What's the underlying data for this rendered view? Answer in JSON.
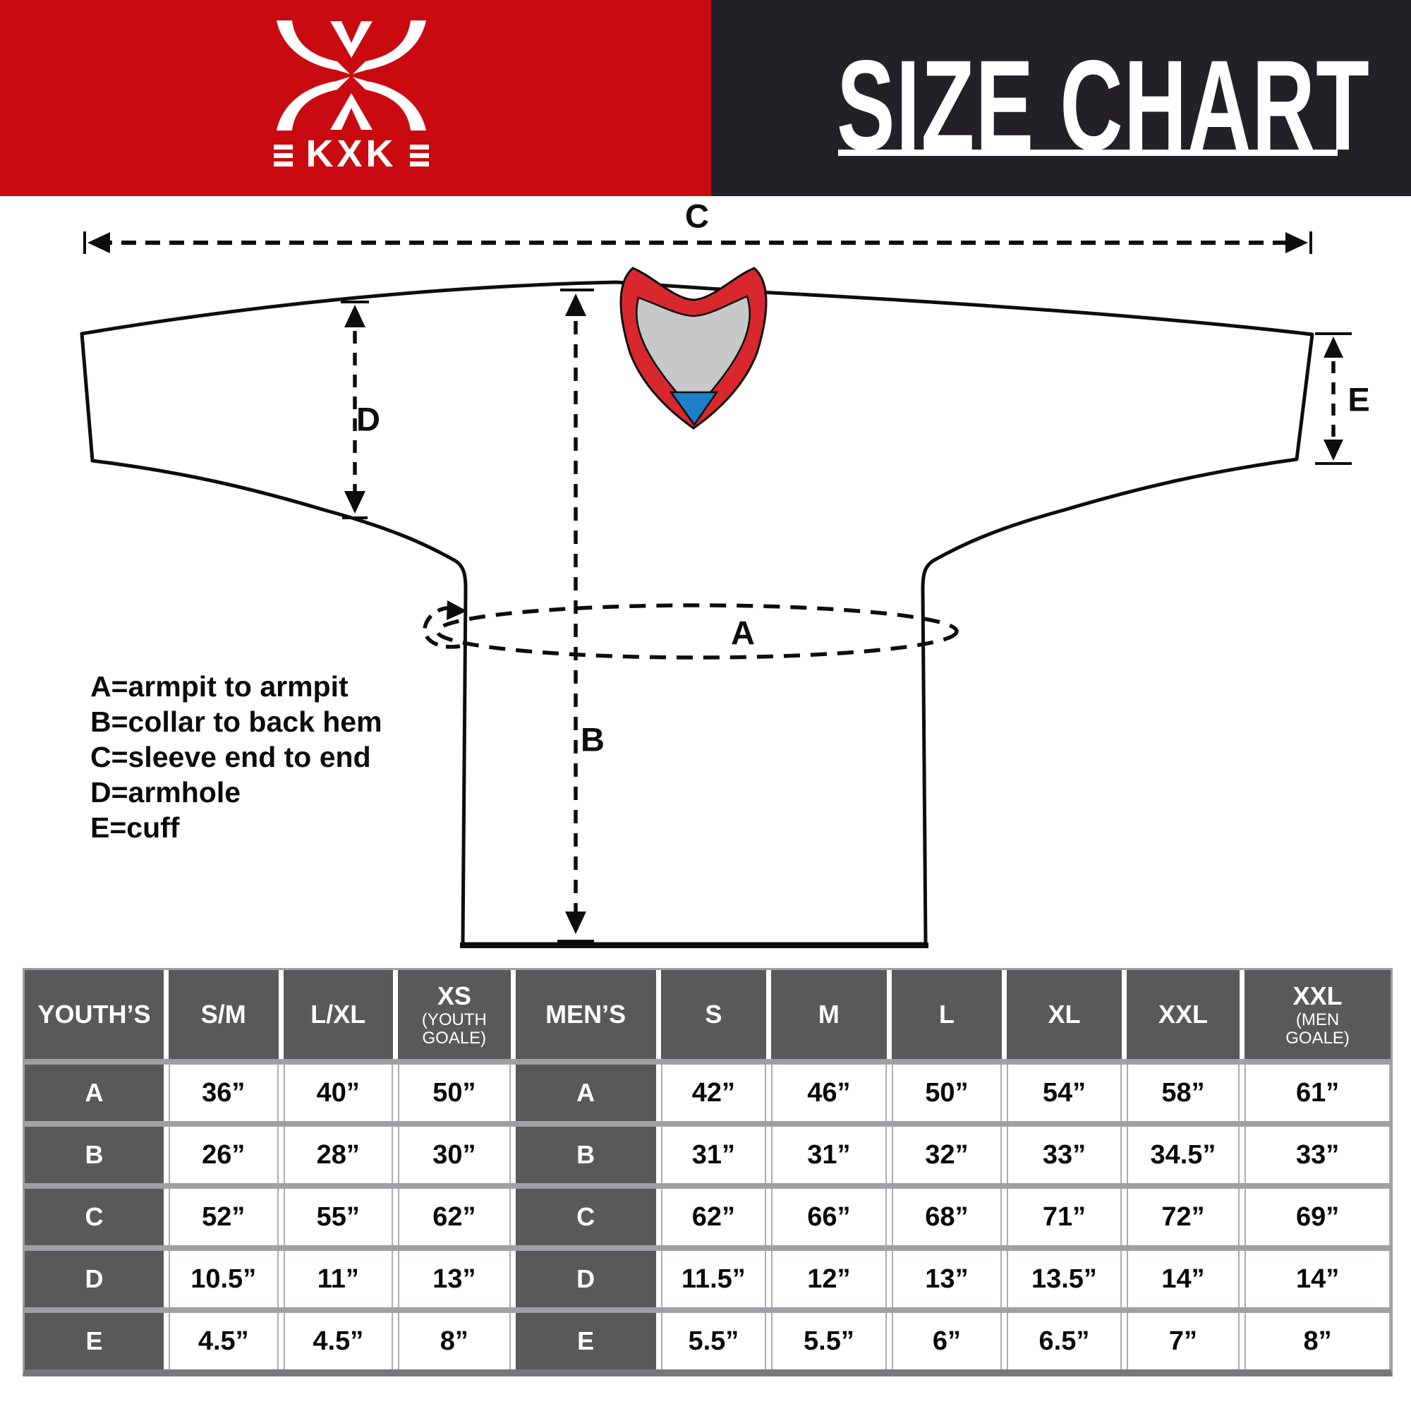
{
  "header": {
    "brand": {
      "name": "KXK",
      "logo": "kxk-x-logo"
    },
    "title": "SIZE CHART",
    "colors": {
      "banner_red": "#C90A10",
      "banner_dark": "#232127"
    }
  },
  "diagram": {
    "labels": {
      "A": "A",
      "B": "B",
      "C": "C",
      "D": "D",
      "E": "E"
    },
    "legend": [
      "A=armpit to armpit",
      "B=collar to back hem",
      "C=sleeve end to end",
      "D=armhole",
      "E=cuff"
    ],
    "colors": {
      "jersey_fill": "#FFFFFF",
      "outline": "#0D0D0D",
      "collar_red": "#D8272D",
      "collar_gray": "#C7C8CA",
      "collar_blue": "#1B80C6"
    }
  },
  "table": {
    "youth": {
      "group_label": "YOUTH’S",
      "columns": [
        {
          "label": "S/M"
        },
        {
          "label": "L/XL"
        },
        {
          "label": "XS",
          "sub": "(YOUTH GOALE)"
        }
      ]
    },
    "men": {
      "group_label": "MEN’S",
      "columns": [
        {
          "label": "S"
        },
        {
          "label": "M"
        },
        {
          "label": "L"
        },
        {
          "label": "XL"
        },
        {
          "label": "XXL"
        },
        {
          "label": "XXL",
          "sub": "(MEN GOALE)"
        }
      ]
    },
    "rows": [
      {
        "label": "A",
        "youth": [
          "36”",
          "40”",
          "50”"
        ],
        "men": [
          "42”",
          "46”",
          "50”",
          "54”",
          "58”",
          "61”"
        ]
      },
      {
        "label": "B",
        "youth": [
          "26”",
          "28”",
          "30”"
        ],
        "men": [
          "31”",
          "31”",
          "32”",
          "33”",
          "34.5”",
          "33”"
        ]
      },
      {
        "label": "C",
        "youth": [
          "52”",
          "55”",
          "62”"
        ],
        "men": [
          "62”",
          "66”",
          "68”",
          "71”",
          "72”",
          "69”"
        ]
      },
      {
        "label": "D",
        "youth": [
          "10.5”",
          "11”",
          "13”"
        ],
        "men": [
          "11.5”",
          "12”",
          "13”",
          "13.5”",
          "14”",
          "14”"
        ]
      },
      {
        "label": "E",
        "youth": [
          "4.5”",
          "4.5”",
          "8”"
        ],
        "men": [
          "5.5”",
          "5.5”",
          "6”",
          "6.5”",
          "7”",
          "8”"
        ]
      }
    ]
  }
}
